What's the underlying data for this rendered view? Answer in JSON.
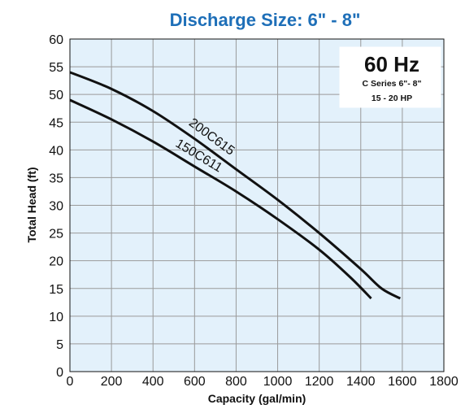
{
  "chart_data": {
    "type": "line",
    "title": "Discharge Size: 6\" - 8\"",
    "xlabel": "Capacity (gal/min)",
    "ylabel": "Total Head (ft)",
    "xlim": [
      0,
      1800
    ],
    "ylim": [
      0,
      60
    ],
    "xticks": [
      0,
      200,
      400,
      600,
      800,
      1000,
      1200,
      1400,
      1600,
      1800
    ],
    "yticks": [
      0,
      5,
      10,
      15,
      20,
      25,
      30,
      35,
      40,
      45,
      50,
      55,
      60
    ],
    "grid": true,
    "annotation_box": {
      "big": "60 Hz",
      "line1": "C Series 6\"- 8\"",
      "line2": "15 - 20 HP"
    },
    "series": [
      {
        "name": "200C615",
        "x": [
          0,
          200,
          400,
          600,
          800,
          1000,
          1200,
          1400,
          1500,
          1590
        ],
        "y": [
          54,
          51,
          47,
          42,
          36.5,
          31,
          25,
          18.5,
          15,
          13.2
        ]
      },
      {
        "name": "150C611",
        "x": [
          0,
          200,
          400,
          600,
          800,
          1000,
          1200,
          1350,
          1450
        ],
        "y": [
          49,
          45.5,
          41.5,
          37,
          32.5,
          27.5,
          22,
          17,
          13.2
        ]
      }
    ],
    "colors": {
      "plot_bg": "#e3f1fb",
      "grid": "#9a9a9a",
      "line": "#111111",
      "title": "#1e6fb8"
    }
  }
}
